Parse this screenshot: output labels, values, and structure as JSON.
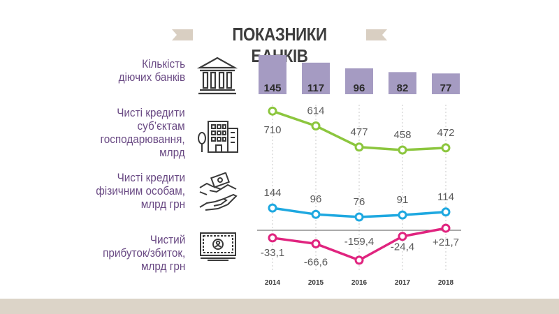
{
  "title": "ПОКАЗНИКИ БАНКІВ",
  "colors": {
    "title_accent": "#d9cfc2",
    "label_text": "#6a4a84",
    "bar_fill": "#a59bc2",
    "corporate_line": "#8cc63e",
    "retail_line": "#1ea8e0",
    "profit_line": "#e0247f",
    "value_text": "#5a5a5a",
    "footer": "#dcd4c8"
  },
  "rows": {
    "banks": {
      "label_lines": [
        "Кількість",
        "діючих банків"
      ],
      "icon": "bank-building-icon"
    },
    "corporate": {
      "label_lines": [
        "Чисті кредити",
        "суб’єктам",
        "господарювання,",
        "млрд"
      ],
      "icon": "office-buildings-icon"
    },
    "retail": {
      "label_lines": [
        "Чисті кредити",
        "фізичним особам,",
        "млрд грн"
      ],
      "icon": "money-handshake-icon"
    },
    "profit": {
      "label_lines": [
        "Чистий",
        "прибуток/збиток,",
        "млрд грн"
      ],
      "icon": "banknote-icon"
    }
  },
  "chart_data": [
    {
      "type": "bar",
      "categories": [
        "2014",
        "2015",
        "2016",
        "2017",
        "2018"
      ],
      "series": [
        {
          "name": "Кількість діючих банків",
          "values": [
            145,
            117,
            96,
            82,
            77
          ]
        }
      ],
      "data_labels": [
        "145",
        "117",
        "96",
        "82",
        "77"
      ],
      "ylim": [
        0,
        145
      ]
    },
    {
      "type": "line",
      "x": [
        "2014",
        "2015",
        "2016",
        "2017",
        "2018"
      ],
      "series": [
        {
          "name": "Чисті кредити суб’єктам господарювання, млрд",
          "values": [
            710,
            614,
            477,
            458,
            472
          ]
        }
      ],
      "data_labels": [
        "710",
        "614",
        "477",
        "458",
        "472"
      ],
      "ylim": [
        440,
        720
      ]
    },
    {
      "type": "line",
      "x": [
        "2014",
        "2015",
        "2016",
        "2017",
        "2018"
      ],
      "series": [
        {
          "name": "Чисті кредити фізичним особам, млрд грн",
          "values": [
            144,
            96,
            76,
            91,
            114
          ]
        }
      ],
      "data_labels": [
        "144",
        "96",
        "76",
        "91",
        "114"
      ],
      "ylim": [
        60,
        150
      ]
    },
    {
      "type": "line",
      "x": [
        "2014",
        "2015",
        "2016",
        "2017",
        "2018"
      ],
      "series": [
        {
          "name": "Чистий прибуток/збиток, млрд грн",
          "values": [
            -33.1,
            -66.6,
            -159.4,
            -24.4,
            21.7
          ]
        }
      ],
      "data_labels": [
        "-33,1",
        "-66,6",
        "-159,4",
        "-24,4",
        "+21,7"
      ],
      "ylim": [
        -160,
        22
      ]
    }
  ],
  "x_axis": {
    "tick_labels": [
      "2014",
      "2015",
      "2016",
      "2017",
      "2018"
    ]
  }
}
